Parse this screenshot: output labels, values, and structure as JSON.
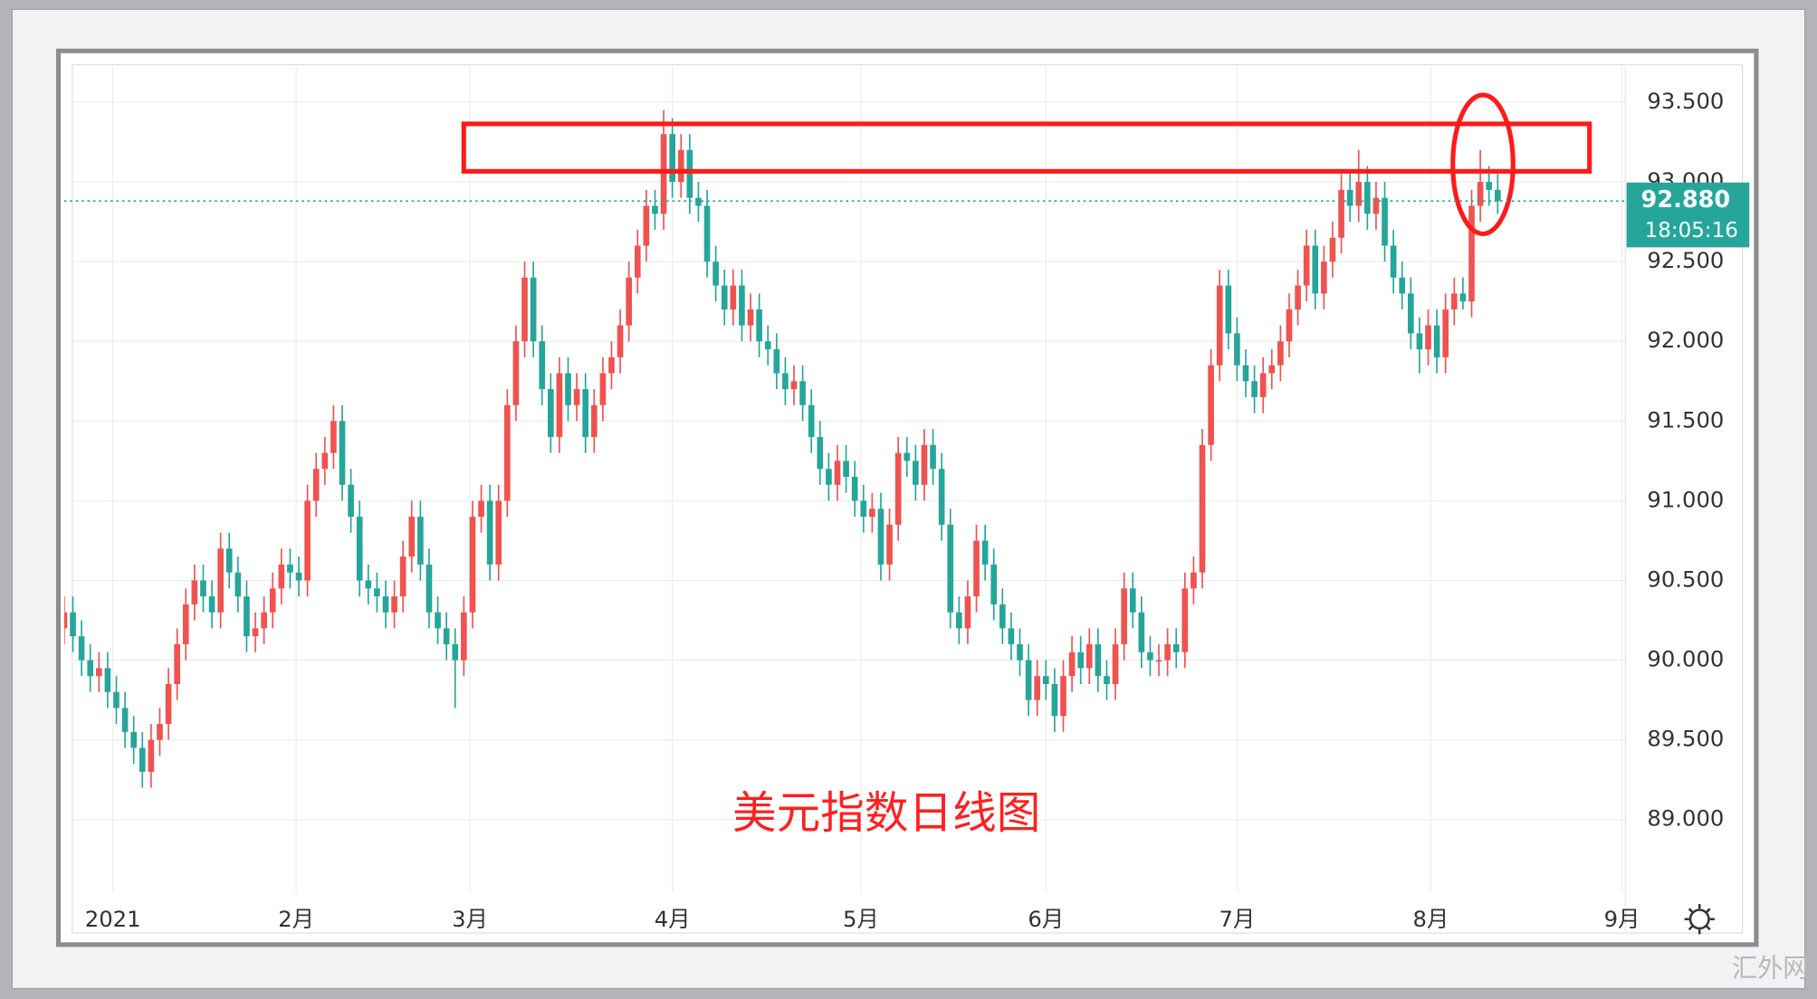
{
  "chart_data": {
    "type": "candlestick",
    "annotation": "美元指数日线图",
    "watermark": "汇外网",
    "up_color": "#ef5350",
    "down_color": "#26a69a",
    "grid": true,
    "xlim": [
      0,
      179.3
    ],
    "xticks": [
      {
        "value": 5.6,
        "label": "2021"
      },
      {
        "value": 26.7,
        "label": "2月"
      },
      {
        "value": 46.7,
        "label": "3月"
      },
      {
        "value": 70,
        "label": "4月"
      },
      {
        "value": 91.7,
        "label": "5月"
      },
      {
        "value": 113,
        "label": "6月"
      },
      {
        "value": 135,
        "label": "7月"
      },
      {
        "value": 157.3,
        "label": "8月"
      },
      {
        "value": 179.3,
        "label": "9月"
      }
    ],
    "ylim": [
      88.55,
      93.72
    ],
    "yticks": [
      {
        "value": 89,
        "label": "89.000"
      },
      {
        "value": 89.5,
        "label": "89.500"
      },
      {
        "value": 90,
        "label": "90.000"
      },
      {
        "value": 90.5,
        "label": "90.500"
      },
      {
        "value": 91,
        "label": "91.000"
      },
      {
        "value": 91.5,
        "label": "91.500"
      },
      {
        "value": 92,
        "label": "92.000"
      },
      {
        "value": 92.5,
        "label": "92.500"
      },
      {
        "value": 93,
        "label": "93.000"
      },
      {
        "value": 93.5,
        "label": "93.500"
      }
    ],
    "last_price": {
      "value": 92.88,
      "label": "92.880"
    },
    "countdown": "18:05:16",
    "ohlc": [
      [
        90.2,
        90.4,
        90.1,
        90.3
      ],
      [
        90.3,
        90.4,
        90.05,
        90.15
      ],
      [
        90.15,
        90.25,
        89.9,
        90.0
      ],
      [
        90.0,
        90.1,
        89.8,
        89.9
      ],
      [
        89.9,
        90.05,
        89.8,
        89.95
      ],
      [
        89.95,
        90.05,
        89.7,
        89.8
      ],
      [
        89.8,
        89.9,
        89.6,
        89.7
      ],
      [
        89.7,
        89.8,
        89.45,
        89.55
      ],
      [
        89.55,
        89.65,
        89.35,
        89.45
      ],
      [
        89.45,
        89.55,
        89.2,
        89.3
      ],
      [
        89.3,
        89.6,
        89.2,
        89.5
      ],
      [
        89.5,
        89.7,
        89.4,
        89.6
      ],
      [
        89.6,
        89.95,
        89.5,
        89.85
      ],
      [
        89.85,
        90.2,
        89.75,
        90.1
      ],
      [
        90.1,
        90.45,
        90.0,
        90.35
      ],
      [
        90.35,
        90.6,
        90.25,
        90.5
      ],
      [
        90.5,
        90.6,
        90.3,
        90.4
      ],
      [
        90.4,
        90.5,
        90.2,
        90.3
      ],
      [
        90.3,
        90.8,
        90.2,
        90.7
      ],
      [
        90.7,
        90.8,
        90.45,
        90.55
      ],
      [
        90.55,
        90.65,
        90.3,
        90.4
      ],
      [
        90.4,
        90.5,
        90.05,
        90.15
      ],
      [
        90.15,
        90.3,
        90.05,
        90.2
      ],
      [
        90.2,
        90.4,
        90.1,
        90.3
      ],
      [
        90.3,
        90.55,
        90.2,
        90.45
      ],
      [
        90.45,
        90.7,
        90.35,
        90.6
      ],
      [
        90.6,
        90.7,
        90.45,
        90.55
      ],
      [
        90.55,
        90.65,
        90.4,
        90.5
      ],
      [
        90.5,
        91.1,
        90.4,
        91.0
      ],
      [
        91.0,
        91.3,
        90.9,
        91.2
      ],
      [
        91.2,
        91.4,
        91.1,
        91.3
      ],
      [
        91.3,
        91.6,
        91.2,
        91.5
      ],
      [
        91.5,
        91.6,
        91.0,
        91.1
      ],
      [
        91.1,
        91.2,
        90.8,
        90.9
      ],
      [
        90.9,
        91.0,
        90.4,
        90.5
      ],
      [
        90.5,
        90.6,
        90.35,
        90.45
      ],
      [
        90.45,
        90.55,
        90.3,
        90.4
      ],
      [
        90.4,
        90.5,
        90.2,
        90.3
      ],
      [
        90.3,
        90.5,
        90.2,
        90.4
      ],
      [
        90.4,
        90.75,
        90.3,
        90.65
      ],
      [
        90.65,
        91.0,
        90.55,
        90.9
      ],
      [
        90.9,
        91.0,
        90.5,
        90.6
      ],
      [
        90.6,
        90.7,
        90.2,
        90.3
      ],
      [
        90.3,
        90.4,
        90.1,
        90.2
      ],
      [
        90.2,
        90.3,
        90.0,
        90.1
      ],
      [
        90.1,
        90.2,
        89.7,
        90.0
      ],
      [
        90.0,
        90.4,
        89.9,
        90.3
      ],
      [
        90.3,
        91.0,
        90.2,
        90.9
      ],
      [
        90.9,
        91.1,
        90.8,
        91.0
      ],
      [
        91.0,
        91.1,
        90.5,
        90.6
      ],
      [
        90.6,
        91.1,
        90.5,
        91.0
      ],
      [
        91.0,
        91.7,
        90.9,
        91.6
      ],
      [
        91.6,
        92.1,
        91.5,
        92.0
      ],
      [
        92.0,
        92.5,
        91.9,
        92.4
      ],
      [
        92.4,
        92.5,
        91.9,
        92.0
      ],
      [
        92.0,
        92.1,
        91.6,
        91.7
      ],
      [
        91.7,
        91.8,
        91.3,
        91.4
      ],
      [
        91.4,
        91.9,
        91.3,
        91.8
      ],
      [
        91.8,
        91.9,
        91.5,
        91.6
      ],
      [
        91.6,
        91.8,
        91.5,
        91.7
      ],
      [
        91.7,
        91.8,
        91.3,
        91.4
      ],
      [
        91.4,
        91.7,
        91.3,
        91.6
      ],
      [
        91.6,
        91.9,
        91.5,
        91.8
      ],
      [
        91.8,
        92.0,
        91.7,
        91.9
      ],
      [
        91.9,
        92.2,
        91.8,
        92.1
      ],
      [
        92.1,
        92.5,
        92.0,
        92.4
      ],
      [
        92.4,
        92.7,
        92.3,
        92.6
      ],
      [
        92.6,
        92.95,
        92.5,
        92.85
      ],
      [
        92.85,
        92.95,
        92.7,
        92.8
      ],
      [
        92.8,
        93.45,
        92.7,
        93.3
      ],
      [
        93.3,
        93.4,
        92.9,
        93.0
      ],
      [
        93.0,
        93.3,
        92.9,
        93.2
      ],
      [
        93.2,
        93.3,
        92.8,
        92.9
      ],
      [
        92.9,
        93.0,
        92.75,
        92.85
      ],
      [
        92.85,
        92.95,
        92.4,
        92.5
      ],
      [
        92.5,
        92.6,
        92.25,
        92.35
      ],
      [
        92.35,
        92.45,
        92.1,
        92.2
      ],
      [
        92.2,
        92.45,
        92.1,
        92.35
      ],
      [
        92.35,
        92.45,
        92.0,
        92.1
      ],
      [
        92.1,
        92.3,
        92.0,
        92.2
      ],
      [
        92.2,
        92.3,
        91.9,
        92.0
      ],
      [
        92.0,
        92.1,
        91.85,
        91.95
      ],
      [
        91.95,
        92.05,
        91.7,
        91.8
      ],
      [
        91.8,
        91.9,
        91.6,
        91.7
      ],
      [
        91.7,
        91.85,
        91.6,
        91.75
      ],
      [
        91.75,
        91.85,
        91.5,
        91.6
      ],
      [
        91.6,
        91.7,
        91.3,
        91.4
      ],
      [
        91.4,
        91.5,
        91.1,
        91.2
      ],
      [
        91.2,
        91.3,
        91.0,
        91.1
      ],
      [
        91.1,
        91.35,
        91.0,
        91.25
      ],
      [
        91.25,
        91.35,
        91.05,
        91.15
      ],
      [
        91.15,
        91.25,
        90.9,
        91.0
      ],
      [
        91.0,
        91.1,
        90.8,
        90.9
      ],
      [
        90.9,
        91.05,
        90.8,
        90.95
      ],
      [
        90.95,
        91.05,
        90.5,
        90.6
      ],
      [
        90.6,
        90.95,
        90.5,
        90.85
      ],
      [
        90.85,
        91.4,
        90.75,
        91.3
      ],
      [
        91.3,
        91.4,
        91.15,
        91.25
      ],
      [
        91.25,
        91.35,
        91.0,
        91.1
      ],
      [
        91.1,
        91.45,
        91.0,
        91.35
      ],
      [
        91.35,
        91.45,
        91.1,
        91.2
      ],
      [
        91.2,
        91.3,
        90.75,
        90.85
      ],
      [
        90.85,
        90.95,
        90.2,
        90.3
      ],
      [
        90.3,
        90.4,
        90.1,
        90.2
      ],
      [
        90.2,
        90.5,
        90.1,
        90.4
      ],
      [
        90.4,
        90.85,
        90.3,
        90.75
      ],
      [
        90.75,
        90.85,
        90.5,
        90.6
      ],
      [
        90.6,
        90.7,
        90.25,
        90.35
      ],
      [
        90.35,
        90.45,
        90.1,
        90.2
      ],
      [
        90.2,
        90.3,
        90.0,
        90.1
      ],
      [
        90.1,
        90.2,
        89.9,
        90.0
      ],
      [
        90.0,
        90.1,
        89.65,
        89.75
      ],
      [
        89.75,
        90.0,
        89.65,
        89.9
      ],
      [
        89.9,
        90.0,
        89.75,
        89.85
      ],
      [
        89.85,
        89.95,
        89.55,
        89.65
      ],
      [
        89.65,
        90.0,
        89.55,
        89.9
      ],
      [
        89.9,
        90.15,
        89.8,
        90.05
      ],
      [
        90.05,
        90.15,
        89.85,
        89.95
      ],
      [
        89.95,
        90.2,
        89.85,
        90.1
      ],
      [
        90.1,
        90.2,
        89.8,
        89.9
      ],
      [
        89.9,
        90.0,
        89.75,
        89.85
      ],
      [
        89.85,
        90.2,
        89.75,
        90.1
      ],
      [
        90.1,
        90.55,
        90.0,
        90.45
      ],
      [
        90.45,
        90.55,
        90.2,
        90.3
      ],
      [
        90.3,
        90.4,
        89.95,
        90.05
      ],
      [
        90.05,
        90.15,
        89.9,
        90.0
      ],
      [
        90.0,
        90.1,
        89.9,
        90.0
      ],
      [
        90.0,
        90.2,
        89.9,
        90.1
      ],
      [
        90.1,
        90.2,
        89.95,
        90.05
      ],
      [
        90.05,
        90.55,
        89.95,
        90.45
      ],
      [
        90.45,
        90.65,
        90.35,
        90.55
      ],
      [
        90.55,
        91.45,
        90.45,
        91.35
      ],
      [
        91.35,
        91.95,
        91.25,
        91.85
      ],
      [
        91.85,
        92.45,
        91.75,
        92.35
      ],
      [
        92.35,
        92.45,
        91.95,
        92.05
      ],
      [
        92.05,
        92.15,
        91.75,
        91.85
      ],
      [
        91.85,
        91.95,
        91.65,
        91.75
      ],
      [
        91.75,
        91.85,
        91.55,
        91.65
      ],
      [
        91.65,
        91.9,
        91.55,
        91.8
      ],
      [
        91.8,
        91.95,
        91.7,
        91.85
      ],
      [
        91.85,
        92.1,
        91.75,
        92.0
      ],
      [
        92.0,
        92.3,
        91.9,
        92.2
      ],
      [
        92.2,
        92.45,
        92.1,
        92.35
      ],
      [
        92.35,
        92.7,
        92.25,
        92.6
      ],
      [
        92.6,
        92.7,
        92.2,
        92.3
      ],
      [
        92.3,
        92.6,
        92.2,
        92.5
      ],
      [
        92.5,
        92.75,
        92.4,
        92.65
      ],
      [
        92.65,
        93.05,
        92.55,
        92.95
      ],
      [
        92.95,
        93.05,
        92.75,
        92.85
      ],
      [
        92.85,
        93.2,
        92.75,
        93.0
      ],
      [
        93.0,
        93.1,
        92.7,
        92.8
      ],
      [
        92.8,
        93.0,
        92.7,
        92.9
      ],
      [
        92.9,
        93.0,
        92.5,
        92.6
      ],
      [
        92.6,
        92.7,
        92.3,
        92.4
      ],
      [
        92.4,
        92.5,
        92.2,
        92.3
      ],
      [
        92.3,
        92.4,
        91.95,
        92.05
      ],
      [
        92.05,
        92.15,
        91.8,
        91.95
      ],
      [
        91.95,
        92.2,
        91.85,
        92.1
      ],
      [
        92.1,
        92.2,
        91.8,
        91.9
      ],
      [
        91.9,
        92.3,
        91.8,
        92.2
      ],
      [
        92.2,
        92.4,
        92.1,
        92.3
      ],
      [
        92.3,
        92.4,
        92.2,
        92.25
      ],
      [
        92.25,
        92.95,
        92.15,
        92.85
      ],
      [
        92.85,
        93.2,
        92.75,
        93.0
      ],
      [
        93.0,
        93.1,
        92.85,
        92.95
      ],
      [
        92.95,
        93.05,
        92.8,
        92.88
      ]
    ]
  }
}
